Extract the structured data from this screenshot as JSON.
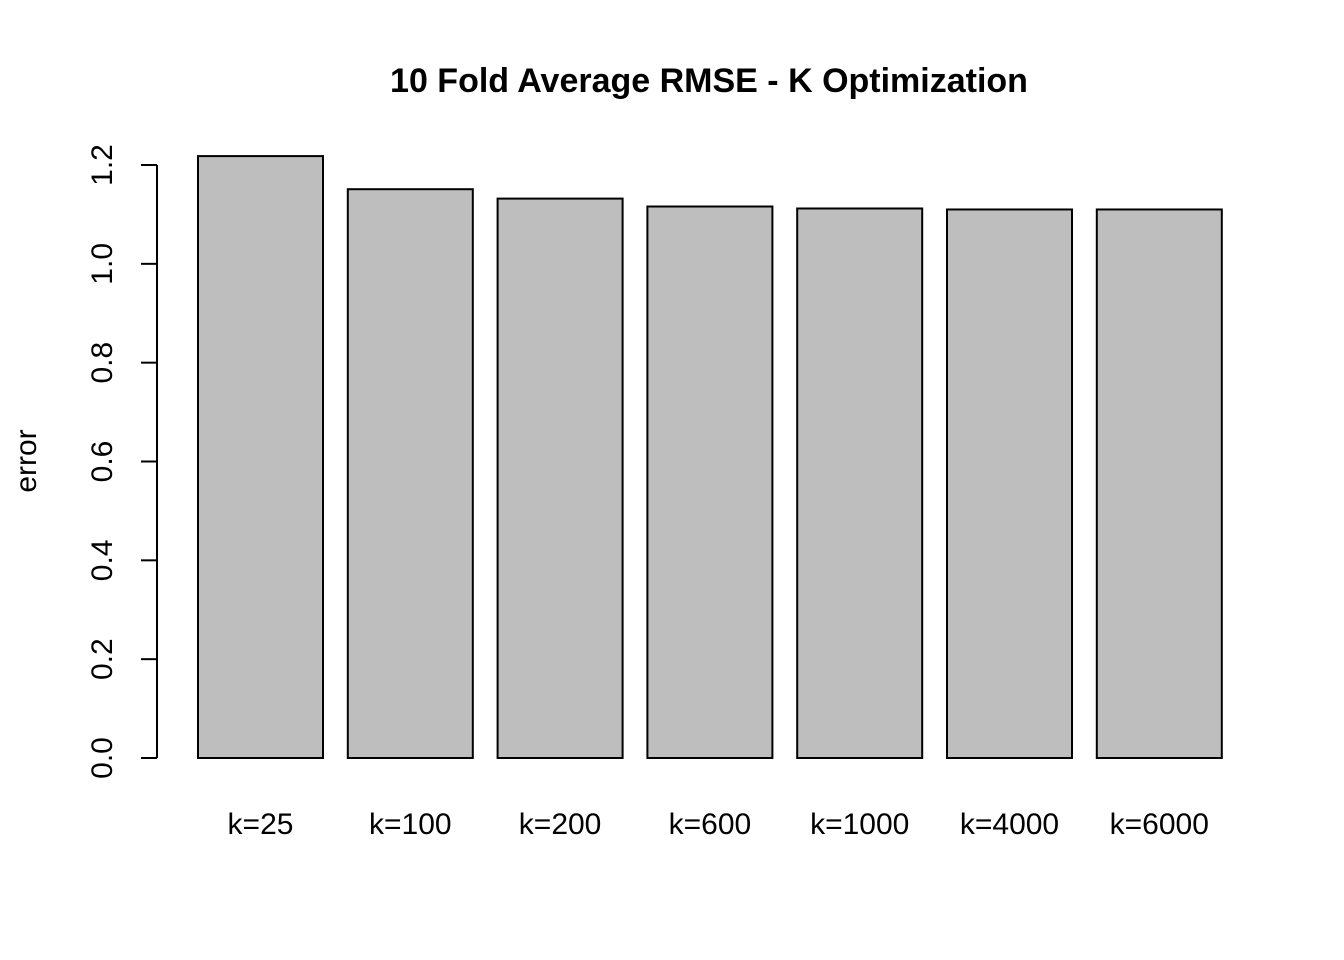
{
  "chart_data": {
    "type": "bar",
    "title": "10 Fold Average RMSE - K Optimization",
    "xlabel": "",
    "ylabel": "error",
    "categories": [
      "k=25",
      "k=100",
      "k=200",
      "k=600",
      "k=1000",
      "k=4000",
      "k=6000"
    ],
    "values": [
      1.218,
      1.151,
      1.132,
      1.116,
      1.112,
      1.11,
      1.11
    ],
    "y_ticks": [
      "0.0",
      "0.2",
      "0.4",
      "0.6",
      "0.8",
      "1.0",
      "1.2"
    ],
    "ylim": [
      0,
      1.2
    ],
    "grid": false,
    "bar_color": "#bebebe",
    "border_color": "#000000"
  }
}
